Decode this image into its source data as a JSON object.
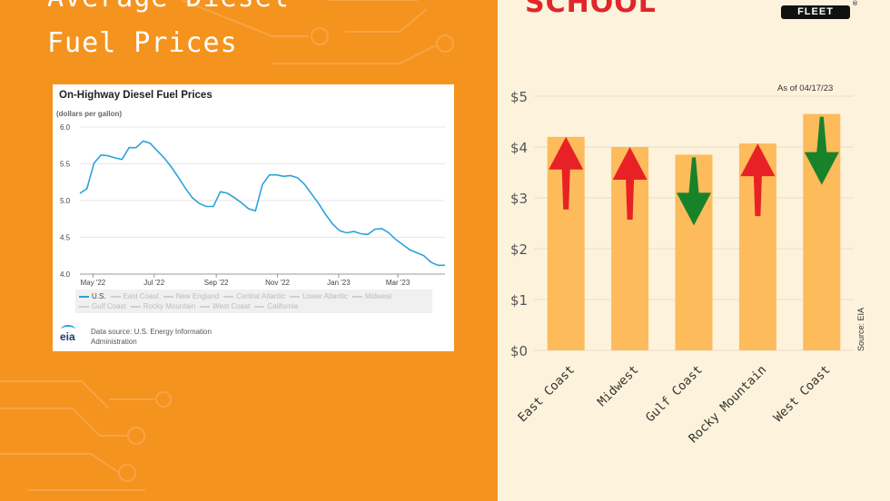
{
  "headline": {
    "line1": "Average Diesel",
    "line2": "Fuel Prices"
  },
  "eia_chart": {
    "title": "On-Highway Diesel Fuel Prices",
    "units": "(dollars per gallon)",
    "legend": [
      "U.S.",
      "East Coast",
      "New England",
      "Central Atlantic",
      "Lower Atlantic",
      "Midwest",
      "Gulf Coast",
      "Rocky Mountain",
      "West Coast",
      "California"
    ],
    "logo": "eia",
    "source": "Data source: U.S. Energy Information Administration"
  },
  "brand": {
    "logo_text": "SCHOOL",
    "sub_badge": "FLEET",
    "reg_mark": "®"
  },
  "bar_chart": {
    "as_of": "As of 04/17/23",
    "source": "Source: EIA"
  },
  "colors": {
    "background_left": "#f5931f",
    "background_right": "#fdf3dc",
    "bar": "#fdbb5b",
    "up_arrow": "#e82127",
    "down_arrow": "#18822b",
    "line": "#2aa3d9",
    "headline": "#ffffff"
  },
  "chart_data": [
    {
      "type": "line",
      "title": "On-Highway Diesel Fuel Prices",
      "ylabel": "(dollars per gallon)",
      "ylim": [
        4.0,
        6.0
      ],
      "yticks": [
        "4.0",
        "4.5",
        "5.0",
        "5.5",
        "6.0"
      ],
      "x_tick_labels": [
        "May '22",
        "Jul '22",
        "Sep '22",
        "Nov '22",
        "Jan '23",
        "Mar '23"
      ],
      "x_range": [
        "2022-04-18",
        "2023-04-17"
      ],
      "series": [
        {
          "name": "U.S.",
          "x": [
            "2022-04-18",
            "2022-04-25",
            "2022-05-02",
            "2022-05-09",
            "2022-05-16",
            "2022-05-23",
            "2022-05-30",
            "2022-06-06",
            "2022-06-13",
            "2022-06-20",
            "2022-06-27",
            "2022-07-04",
            "2022-07-11",
            "2022-07-18",
            "2022-07-25",
            "2022-08-01",
            "2022-08-08",
            "2022-08-15",
            "2022-08-22",
            "2022-08-29",
            "2022-09-05",
            "2022-09-12",
            "2022-09-19",
            "2022-09-26",
            "2022-10-03",
            "2022-10-10",
            "2022-10-17",
            "2022-10-24",
            "2022-10-31",
            "2022-11-07",
            "2022-11-14",
            "2022-11-21",
            "2022-11-28",
            "2022-12-05",
            "2022-12-12",
            "2022-12-19",
            "2022-12-26",
            "2023-01-02",
            "2023-01-09",
            "2023-01-16",
            "2023-01-23",
            "2023-01-30",
            "2023-02-06",
            "2023-02-13",
            "2023-02-20",
            "2023-02-27",
            "2023-03-06",
            "2023-03-13",
            "2023-03-20",
            "2023-03-27",
            "2023-04-03",
            "2023-04-10",
            "2023-04-17"
          ],
          "values": [
            5.1,
            5.16,
            5.51,
            5.62,
            5.61,
            5.58,
            5.56,
            5.72,
            5.72,
            5.81,
            5.78,
            5.68,
            5.58,
            5.46,
            5.32,
            5.17,
            5.04,
            4.96,
            4.92,
            4.92,
            5.12,
            5.1,
            5.04,
            4.97,
            4.89,
            4.86,
            5.22,
            5.35,
            5.35,
            5.33,
            5.34,
            5.31,
            5.22,
            5.09,
            4.96,
            4.81,
            4.68,
            4.59,
            4.56,
            4.58,
            4.55,
            4.54,
            4.61,
            4.62,
            4.56,
            4.47,
            4.4,
            4.33,
            4.29,
            4.25,
            4.16,
            4.12,
            4.12
          ]
        }
      ]
    },
    {
      "type": "bar",
      "categories": [
        "East Coast",
        "Midwest",
        "Gulf Coast",
        "Rocky Mountain",
        "West Coast"
      ],
      "values": [
        4.2,
        4.0,
        3.85,
        4.07,
        4.65
      ],
      "ylim": [
        0,
        5
      ],
      "yticks": [
        "$0",
        "$1",
        "$2",
        "$3",
        "$4",
        "$5"
      ],
      "trend": [
        "up",
        "up",
        "down",
        "up",
        "down"
      ],
      "grid": true
    }
  ]
}
